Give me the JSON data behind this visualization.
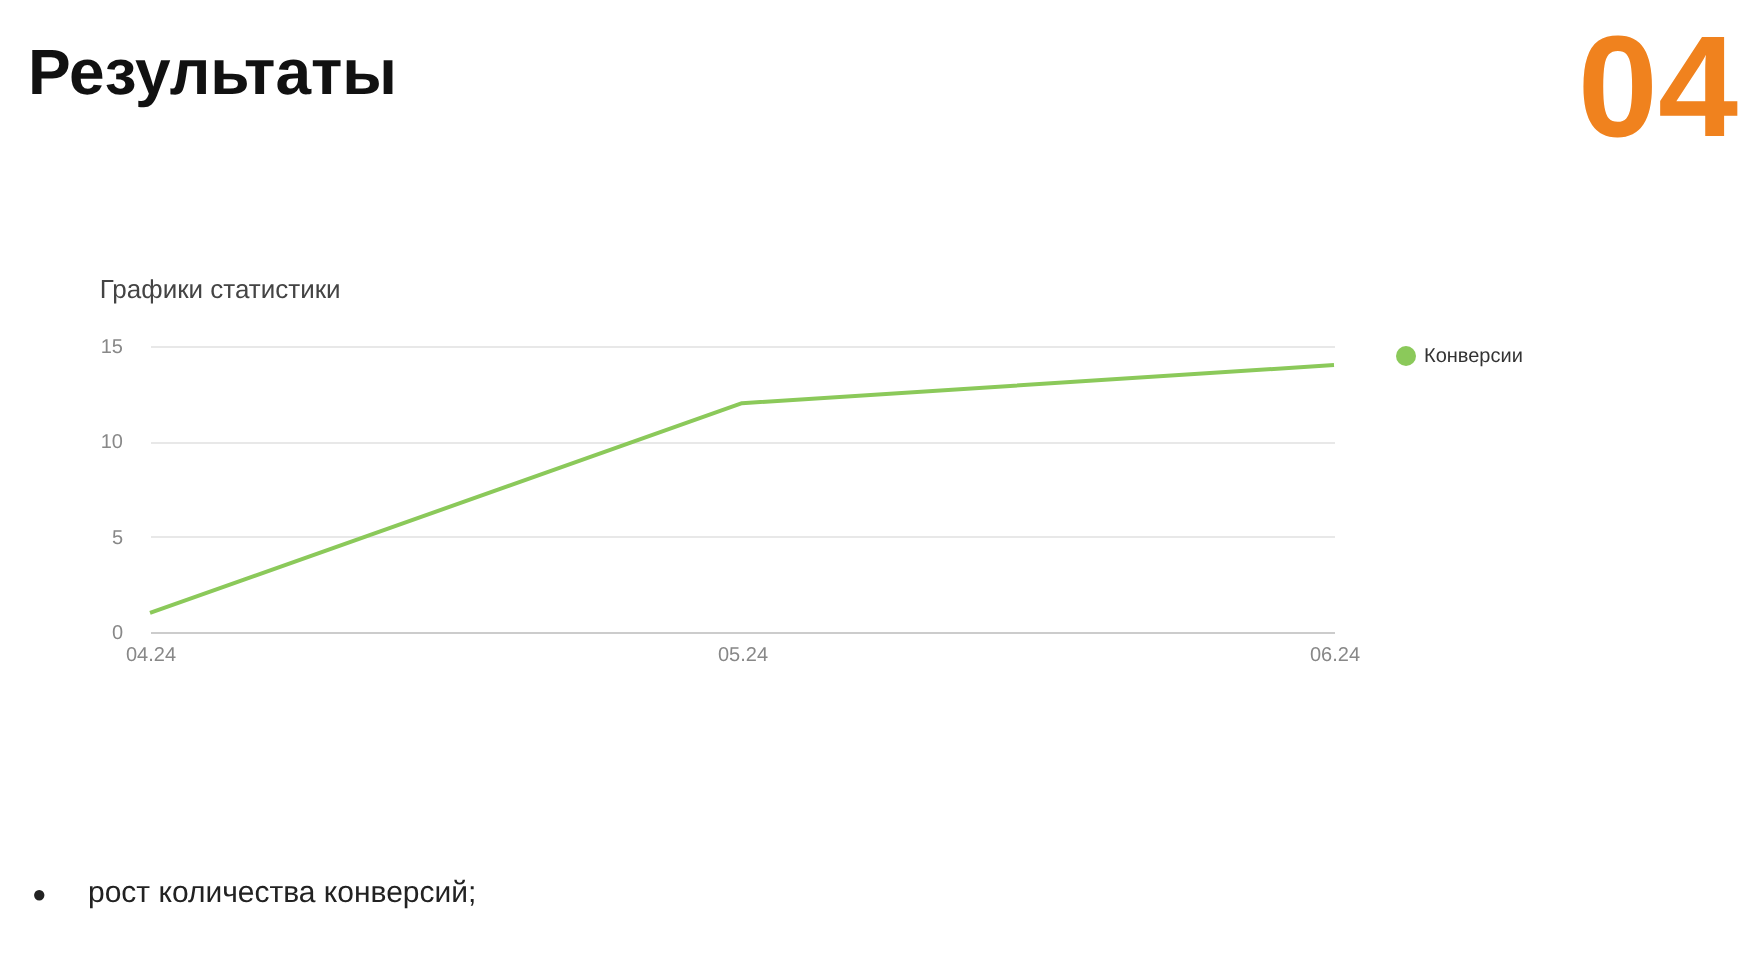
{
  "chart_data": {
    "type": "line",
    "title": "Результаты",
    "subtitle": "Графики статистики",
    "annotations": [
      "04",
      "●",
      "рост количества конверсий;"
    ],
    "categories": [
      "04.24",
      "05.24",
      "06.24"
    ],
    "series": [
      {
        "name": "Конверсии",
        "color": "#8bc95a",
        "values": [
          1,
          12,
          14
        ]
      }
    ],
    "ylim": [
      0,
      15
    ],
    "yticks": [
      0,
      5,
      10,
      15
    ],
    "grid": "y",
    "legend": "top right",
    "marker": "none",
    "line_style": "solid"
  }
}
